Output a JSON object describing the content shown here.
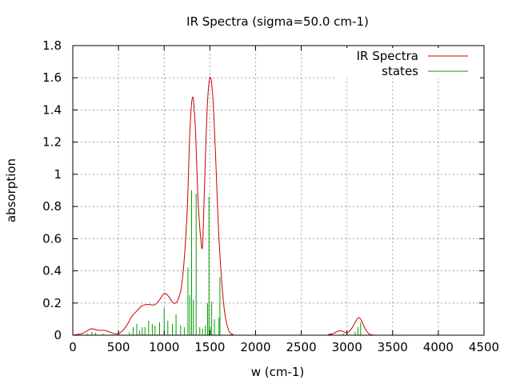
{
  "chart_data": {
    "type": "line",
    "title": "IR Spectra (sigma=50.0 cm-1)",
    "xlabel": "w (cm-1)",
    "ylabel": "absorption",
    "xlim": [
      0,
      4500
    ],
    "ylim": [
      0,
      1.8
    ],
    "x_ticks": [
      0,
      500,
      1000,
      1500,
      2000,
      2500,
      3000,
      3500,
      4000,
      4500
    ],
    "y_ticks": [
      0,
      0.2,
      0.4,
      0.6,
      0.8,
      1,
      1.2,
      1.4,
      1.6,
      1.8
    ],
    "x_tick_labels": [
      "0",
      "500",
      "1000",
      "1500",
      "2000",
      "2500",
      "3000",
      "3500",
      "4000",
      "4500"
    ],
    "y_tick_labels": [
      "0",
      "0.2",
      "0.4",
      "0.6",
      "0.8",
      "1",
      "1.2",
      "1.4",
      "1.6",
      "1.8"
    ],
    "grid": true,
    "legend_position": "top-right",
    "series": [
      {
        "name": "IR Spectra",
        "color": "#cc0000",
        "style": "line",
        "x": [
          0,
          100,
          150,
          200,
          250,
          300,
          350,
          400,
          450,
          500,
          550,
          600,
          650,
          700,
          750,
          800,
          850,
          900,
          950,
          1000,
          1050,
          1100,
          1150,
          1200,
          1250,
          1280,
          1310,
          1340,
          1370,
          1400,
          1420,
          1440,
          1470,
          1500,
          1530,
          1560,
          1600,
          1650,
          1700,
          1750,
          1800,
          2750,
          2800,
          2850,
          2900,
          2950,
          3000,
          3050,
          3100,
          3130,
          3160,
          3200,
          3250,
          3300
        ],
        "y": [
          0,
          0.01,
          0.025,
          0.04,
          0.035,
          0.03,
          0.03,
          0.02,
          0.01,
          0.01,
          0.03,
          0.07,
          0.12,
          0.15,
          0.18,
          0.19,
          0.19,
          0.19,
          0.22,
          0.26,
          0.24,
          0.2,
          0.22,
          0.35,
          0.75,
          1.25,
          1.48,
          1.3,
          0.85,
          0.6,
          0.56,
          0.9,
          1.4,
          1.6,
          1.5,
          1.15,
          0.6,
          0.2,
          0.04,
          0.005,
          0,
          0,
          0.005,
          0.01,
          0.025,
          0.025,
          0.015,
          0.04,
          0.09,
          0.11,
          0.09,
          0.04,
          0.005,
          0
        ]
      },
      {
        "name": "states",
        "color": "#00a000",
        "style": "impulse",
        "x": [
          160,
          210,
          250,
          330,
          430,
          620,
          660,
          700,
          730,
          760,
          790,
          830,
          870,
          900,
          950,
          1000,
          1040,
          1090,
          1130,
          1180,
          1220,
          1260,
          1280,
          1300,
          1320,
          1350,
          1390,
          1420,
          1450,
          1475,
          1490,
          1505,
          1520,
          1550,
          1600,
          1610,
          2960,
          3090,
          3120,
          3150
        ],
        "y": [
          0.01,
          0.02,
          0.015,
          0.01,
          0.005,
          0.02,
          0.05,
          0.07,
          0.03,
          0.05,
          0.05,
          0.09,
          0.07,
          0.06,
          0.08,
          0.17,
          0.09,
          0.07,
          0.13,
          0.06,
          0.05,
          0.42,
          0.25,
          0.9,
          0.22,
          0.88,
          0.05,
          0.04,
          0.06,
          0.2,
          0.86,
          0.05,
          0.21,
          0.1,
          0.11,
          0.36,
          0.01,
          0.02,
          0.05,
          0.08
        ]
      }
    ]
  }
}
